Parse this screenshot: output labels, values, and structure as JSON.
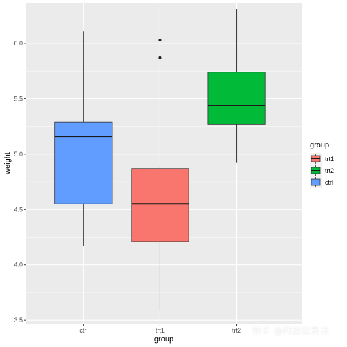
{
  "chart_data": {
    "type": "box",
    "xlabel": "group",
    "ylabel": "weight",
    "ylim": [
      3.47,
      6.36
    ],
    "yticks": [
      3.5,
      4.0,
      4.5,
      5.0,
      5.5,
      6.0
    ],
    "ytick_labels": [
      "3.5",
      "4.0",
      "4.5",
      "5.0",
      "5.5",
      "6.0"
    ],
    "categories": [
      "ctrl",
      "trt1",
      "trt2"
    ],
    "grid": true,
    "background": "#ebebeb",
    "legend": {
      "title": "group",
      "position": "right",
      "entries": [
        "trt1",
        "trt2",
        "ctrl"
      ],
      "colors": [
        "#f8766d",
        "#00ba38",
        "#619cff"
      ]
    },
    "boxes": [
      {
        "group": "ctrl",
        "min": 4.17,
        "q1": 4.55,
        "median": 5.16,
        "q3": 5.29,
        "max": 6.11,
        "outliers": [],
        "color": "#619cff"
      },
      {
        "group": "trt1",
        "min": 3.59,
        "q1": 4.21,
        "median": 4.55,
        "q3": 4.87,
        "max": 4.89,
        "outliers": [
          5.87,
          6.03
        ],
        "color": "#f8766d"
      },
      {
        "group": "trt2",
        "min": 4.92,
        "q1": 5.27,
        "median": 5.44,
        "q3": 5.74,
        "max": 6.31,
        "outliers": [],
        "color": "#00ba38"
      }
    ]
  },
  "watermark": "知乎 @阿趣就是我"
}
